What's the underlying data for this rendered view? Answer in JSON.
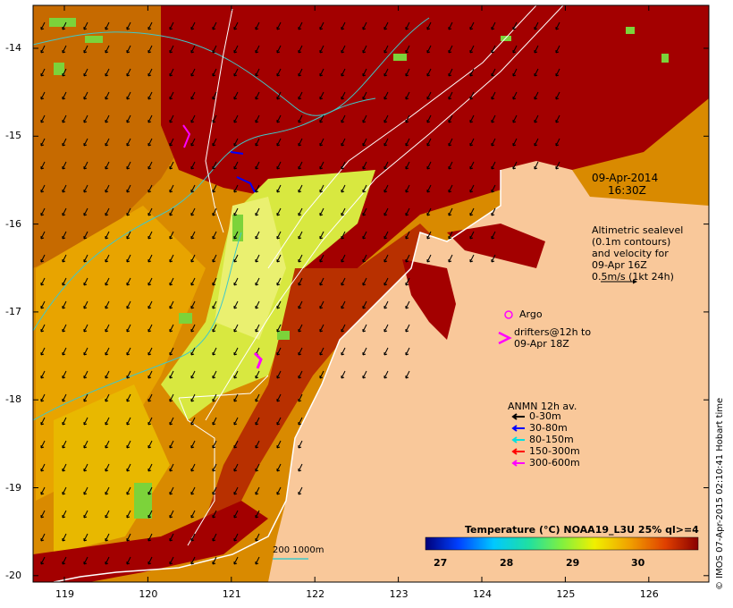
{
  "map": {
    "date_label": "09-Apr-2014",
    "time_label": "16:30Z",
    "altimetry_text": [
      "Altimetric sealevel",
      "(0.1m contours)",
      "and velocity for",
      "09-Apr 16Z",
      "0.5m/s (1kt 24h)"
    ],
    "argo_label": "Argo",
    "drifters_text": [
      "drifters@12h to",
      "09-Apr 18Z"
    ],
    "anmn_title": "ANMN 12h av.",
    "anmn_items": [
      {
        "label": "0-30m",
        "color": "#000000"
      },
      {
        "label": "30-80m",
        "color": "#0000ff"
      },
      {
        "label": "80-150m",
        "color": "#00e0e0"
      },
      {
        "label": "150-300m",
        "color": "#ff0000"
      },
      {
        "label": "300-600m",
        "color": "#ff00ff"
      }
    ],
    "isobath_label": "200  1000m",
    "colorbar_title": "Temperature (°C) NOAA19_L3U 25% ql>=4",
    "colorbar_ticks": [
      "27",
      "28",
      "29",
      "30"
    ],
    "credit": "© IMOS 07-Apr-2015 02:10:41 Hobart time",
    "lat_ticks": [
      "-14",
      "-15",
      "-16",
      "-17",
      "-18",
      "-19",
      "-20"
    ],
    "lon_ticks": [
      "119",
      "120",
      "121",
      "122",
      "123",
      "124",
      "125",
      "126"
    ],
    "colors": {
      "land": "#f9c89a",
      "hot": "#a30000",
      "warm": "#d98a00",
      "mid": "#f2c000",
      "cool": "#d8e840",
      "green": "#7cd33a",
      "coast": "#ffffff",
      "isobath": "#40c8c8"
    }
  }
}
